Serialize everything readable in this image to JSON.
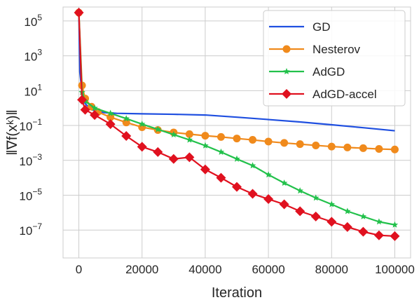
{
  "chart_data": {
    "type": "line",
    "title": "",
    "xlabel": "Iteration",
    "ylabel": "‖∇f(xᵏ)‖",
    "xlim": [
      -5000,
      105000
    ],
    "ylim_log10": [
      -8.6,
      5.8
    ],
    "y_scale": "log",
    "grid": true,
    "legend_position": "top-right",
    "x_ticks": [
      {
        "value": 0,
        "label": "0"
      },
      {
        "value": 20000,
        "label": "20000"
      },
      {
        "value": 40000,
        "label": "40000"
      },
      {
        "value": 60000,
        "label": "60000"
      },
      {
        "value": 80000,
        "label": "80000"
      },
      {
        "value": 100000,
        "label": "100000"
      }
    ],
    "y_ticks": [
      {
        "exp": 5,
        "base": "10",
        "sup": "5"
      },
      {
        "exp": 3,
        "base": "10",
        "sup": "3"
      },
      {
        "exp": 1,
        "base": "10",
        "sup": "1"
      },
      {
        "exp": -1,
        "base": "10",
        "sup": "−1"
      },
      {
        "exp": -3,
        "base": "10",
        "sup": "−3"
      },
      {
        "exp": -5,
        "base": "10",
        "sup": "−5"
      },
      {
        "exp": -7,
        "base": "10",
        "sup": "−7"
      }
    ],
    "series": [
      {
        "name": "GD",
        "color": "#1f4fe0",
        "marker": "none",
        "x": [
          0,
          300,
          1000,
          2000,
          4000,
          8000,
          12000,
          20000,
          30000,
          40000,
          50000,
          60000,
          70000,
          80000,
          90000,
          100000
        ],
        "y": [
          300000,
          120,
          8,
          1.8,
          0.8,
          0.55,
          0.5,
          0.47,
          0.44,
          0.4,
          0.3,
          0.22,
          0.16,
          0.11,
          0.075,
          0.05
        ]
      },
      {
        "name": "Nesterov",
        "color": "#f08a1c",
        "marker": "circle",
        "x": [
          0,
          1000,
          2000,
          4000,
          6000,
          10000,
          15000,
          20000,
          25000,
          30000,
          35000,
          40000,
          45000,
          50000,
          55000,
          60000,
          65000,
          70000,
          75000,
          80000,
          85000,
          90000,
          95000,
          100000
        ],
        "y": [
          300000,
          20,
          3.5,
          1.2,
          0.6,
          0.3,
          0.15,
          0.08,
          0.055,
          0.04,
          0.032,
          0.026,
          0.022,
          0.018,
          0.015,
          0.012,
          0.01,
          0.0085,
          0.0072,
          0.0062,
          0.0055,
          0.005,
          0.0045,
          0.0042
        ]
      },
      {
        "name": "AdGD",
        "color": "#22c14b",
        "marker": "star",
        "x": [
          0,
          1000,
          2000,
          5000,
          10000,
          15000,
          20000,
          25000,
          30000,
          35000,
          40000,
          45000,
          50000,
          55000,
          60000,
          65000,
          70000,
          75000,
          80000,
          85000,
          90000,
          95000,
          100000
        ],
        "y": [
          300000,
          8,
          2.5,
          1.0,
          0.5,
          0.25,
          0.12,
          0.06,
          0.03,
          0.015,
          0.007,
          0.003,
          0.0012,
          0.0005,
          0.00015,
          5e-05,
          1.8e-05,
          7e-06,
          3e-06,
          1.2e-06,
          6e-07,
          3e-07,
          2e-07
        ]
      },
      {
        "name": "AdGD-accel",
        "color": "#e0111f",
        "marker": "diamond",
        "x": [
          0,
          1000,
          2000,
          5000,
          10000,
          15000,
          20000,
          25000,
          30000,
          35000,
          40000,
          45000,
          50000,
          55000,
          60000,
          65000,
          70000,
          75000,
          80000,
          85000,
          90000,
          95000,
          100000
        ],
        "y": [
          300000,
          3,
          0.8,
          0.4,
          0.12,
          0.025,
          0.006,
          0.003,
          0.0012,
          0.0015,
          0.0003,
          0.0001,
          3e-05,
          1.2e-05,
          6e-06,
          3e-06,
          1.2e-06,
          6e-07,
          3e-07,
          1.5e-07,
          8e-08,
          5e-08,
          4.5e-08
        ]
      }
    ]
  }
}
